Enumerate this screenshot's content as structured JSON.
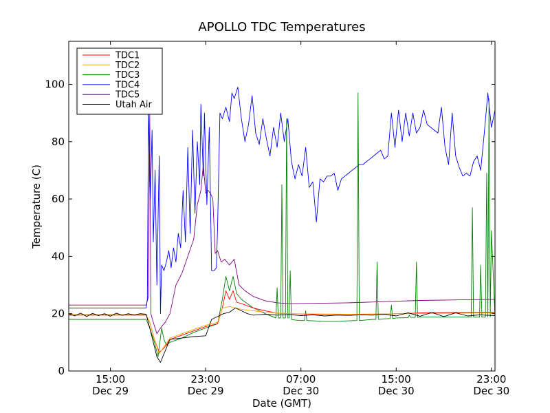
{
  "chart_data": {
    "type": "line",
    "title": "APOLLO TDC Temperatures",
    "xlabel": "Date (GMT)",
    "ylabel": "Temperature (C)",
    "x_unit": "hours since Dec 29 00:00 GMT",
    "xlim": [
      11.5,
      47.3
    ],
    "ylim": [
      0,
      115
    ],
    "grid": false,
    "legend_position": "top-left",
    "x_ticks": [
      {
        "value": 15,
        "time": "15:00",
        "date": "Dec 29"
      },
      {
        "value": 23,
        "time": "23:00",
        "date": "Dec 29"
      },
      {
        "value": 31,
        "time": "07:00",
        "date": "Dec 30"
      },
      {
        "value": 39,
        "time": "15:00",
        "date": "Dec 30"
      },
      {
        "value": 47,
        "time": "23:00",
        "date": "Dec 30"
      }
    ],
    "y_ticks": [
      0,
      20,
      40,
      60,
      80,
      100
    ],
    "series": [
      {
        "name": "TDC1",
        "color": "#ff0000",
        "x": [
          11.5,
          18.0,
          18.3,
          18.7,
          19.1,
          19.5,
          20.0,
          21.0,
          22.0,
          23.0,
          24.0,
          24.4,
          24.7,
          25.0,
          25.3,
          25.6,
          26.0,
          27.0,
          28.0,
          29.0,
          30.0,
          32.0,
          35.0,
          38.0,
          40.0,
          42.0,
          44.0,
          46.0,
          47.3
        ],
        "y": [
          19.5,
          19.5,
          17.0,
          11.0,
          6.5,
          8.0,
          11.0,
          12.5,
          14.0,
          15.5,
          16.5,
          22.0,
          28.0,
          25.0,
          28.0,
          24.0,
          23.5,
          22.0,
          21.0,
          20.2,
          20.0,
          19.8,
          19.7,
          19.9,
          20.1,
          20.4,
          20.4,
          20.5,
          20.5
        ]
      },
      {
        "name": "TDC2",
        "color": "#ffa500",
        "x": [
          11.5,
          18.0,
          18.3,
          18.7,
          19.1,
          19.5,
          20.0,
          21.0,
          22.0,
          23.0,
          24.0,
          24.4,
          25.0,
          26.0,
          28.0,
          30.0,
          35.0,
          40.0,
          47.3
        ],
        "y": [
          19.7,
          19.7,
          17.0,
          11.0,
          6.0,
          8.5,
          11.5,
          13.0,
          14.5,
          16.0,
          17.0,
          22.0,
          22.5,
          21.5,
          20.5,
          20.0,
          19.8,
          20.0,
          20.3
        ]
      },
      {
        "name": "TDC3",
        "color": "#008000",
        "x": [
          11.5,
          18.0,
          18.3,
          18.7,
          19.0,
          19.3,
          19.5,
          19.7,
          20.0,
          21.0,
          22.0,
          23.0,
          24.0,
          24.4,
          24.7,
          25.0,
          25.3,
          25.6,
          26.0,
          27.0,
          28.0,
          28.9,
          29.0,
          29.1,
          29.3,
          29.4,
          29.5,
          29.7,
          29.8,
          29.9,
          30.0,
          30.1,
          30.2,
          30.5,
          31.0,
          31.3,
          31.4,
          31.5,
          32.0,
          33.0,
          34.0,
          35.0,
          35.7,
          35.8,
          35.9,
          36.2,
          37.0,
          37.3,
          37.4,
          37.5,
          38.0,
          38.5,
          38.6,
          38.7,
          39.0,
          40.0,
          40.1,
          40.2,
          40.6,
          40.7,
          40.8,
          41.0,
          42.0,
          43.0,
          44.0,
          45.0,
          45.3,
          45.4,
          45.5,
          46.0,
          46.1,
          46.2,
          46.5,
          46.6,
          46.7,
          46.8,
          46.9,
          47.0,
          47.3
        ],
        "y": [
          18.0,
          18.0,
          15.0,
          10.0,
          5.0,
          15.0,
          11.0,
          9.0,
          10.0,
          11.5,
          13.5,
          15.0,
          16.5,
          25.0,
          33.0,
          28.0,
          33.0,
          27.0,
          25.0,
          22.0,
          20.0,
          18.5,
          29.0,
          18.5,
          18.5,
          65.0,
          18.5,
          18.5,
          88.0,
          18.5,
          18.5,
          35.0,
          18.0,
          17.8,
          17.6,
          17.6,
          21.0,
          17.6,
          17.5,
          17.3,
          17.3,
          17.5,
          17.6,
          97.0,
          17.6,
          17.7,
          18.0,
          18.0,
          38.0,
          18.0,
          18.2,
          18.3,
          23.0,
          18.3,
          18.5,
          18.6,
          19.5,
          18.7,
          18.7,
          38.0,
          18.7,
          18.8,
          18.8,
          18.8,
          18.8,
          18.8,
          18.8,
          57.0,
          18.8,
          18.8,
          37.0,
          18.8,
          18.8,
          69.0,
          18.8,
          95.0,
          18.8,
          49.0,
          18.8
        ]
      },
      {
        "name": "TDC4",
        "color": "#0000ff",
        "x": [
          11.5,
          18.0,
          18.1,
          18.2,
          18.35,
          18.5,
          18.6,
          18.75,
          18.9,
          19.1,
          19.2,
          19.3,
          19.5,
          19.7,
          19.9,
          20.1,
          20.3,
          20.5,
          20.7,
          20.9,
          21.1,
          21.3,
          21.5,
          21.7,
          21.9,
          22.1,
          22.3,
          22.5,
          22.6,
          22.8,
          22.9,
          23.1,
          23.3,
          23.5,
          23.7,
          23.9,
          24.0,
          24.2,
          24.4,
          24.7,
          25.0,
          25.2,
          25.4,
          25.7,
          26.0,
          26.3,
          26.6,
          26.9,
          27.2,
          27.5,
          27.8,
          28.1,
          28.4,
          28.7,
          29.0,
          29.3,
          29.6,
          29.9,
          30.2,
          30.5,
          30.8,
          31.1,
          31.4,
          31.7,
          32.0,
          32.3,
          32.6,
          32.9,
          33.2,
          33.5,
          33.8,
          34.1,
          34.4,
          34.7,
          35.0,
          35.3,
          35.6,
          35.9,
          36.2,
          36.5,
          36.8,
          37.1,
          37.4,
          37.7,
          38.0,
          38.3,
          38.6,
          38.9,
          39.2,
          39.5,
          39.8,
          40.1,
          40.4,
          40.7,
          41.0,
          41.3,
          41.6,
          41.9,
          42.2,
          42.5,
          42.8,
          43.1,
          43.4,
          43.7,
          44.0,
          44.3,
          44.6,
          44.9,
          45.2,
          45.5,
          45.8,
          46.1,
          46.4,
          46.7,
          47.0,
          47.3
        ],
        "y": [
          22.0,
          22.0,
          25.0,
          92.0,
          60.0,
          84.0,
          45.0,
          70.0,
          30.0,
          75.0,
          20.0,
          37.0,
          35.0,
          38.0,
          42.0,
          36.0,
          43.0,
          38.0,
          48.0,
          43.0,
          63.0,
          45.0,
          78.0,
          48.0,
          84.0,
          55.0,
          80.0,
          65.0,
          93.0,
          68.0,
          90.0,
          58.0,
          85.0,
          35.0,
          35.0,
          36.0,
          50.0,
          90.0,
          88.0,
          92.0,
          87.0,
          97.0,
          95.0,
          99.0,
          88.0,
          80.0,
          86.0,
          96.0,
          83.0,
          79.0,
          88.0,
          81.0,
          75.0,
          85.0,
          78.0,
          90.0,
          80.0,
          88.0,
          73.0,
          67.0,
          72.0,
          68.0,
          78.0,
          64.0,
          66.0,
          52.0,
          67.0,
          66.0,
          68.0,
          68.0,
          69.0,
          63.0,
          67.0,
          68.0,
          69.0,
          70.0,
          71.0,
          72.0,
          72.0,
          73.0,
          74.0,
          75.0,
          76.0,
          77.0,
          74.0,
          75.0,
          90.0,
          78.0,
          91.0,
          80.0,
          90.0,
          82.0,
          90.0,
          83.0,
          85.0,
          91.0,
          86.0,
          85.0,
          84.0,
          83.0,
          92.0,
          78.0,
          72.0,
          90.0,
          75.0,
          71.0,
          68.0,
          69.0,
          68.0,
          73.0,
          75.0,
          70.0,
          83.0,
          97.0,
          85.0,
          91.0
        ]
      },
      {
        "name": "TDC5",
        "color": "#800080",
        "x": [
          11.5,
          18.0,
          18.2,
          18.3,
          18.4,
          18.6,
          18.9,
          19.2,
          19.6,
          20.0,
          20.5,
          21.0,
          21.5,
          22.0,
          22.3,
          22.6,
          22.8,
          23.0,
          23.2,
          23.4,
          23.6,
          23.8,
          24.0,
          24.3,
          24.6,
          25.0,
          25.4,
          25.8,
          26.3,
          27.0,
          28.0,
          29.0,
          30.0,
          32.0,
          35.0,
          38.0,
          41.0,
          44.0,
          47.3
        ],
        "y": [
          23.0,
          23.0,
          26.0,
          90.0,
          20.0,
          17.0,
          13.0,
          15.0,
          17.0,
          20.0,
          30.0,
          34.0,
          40.0,
          46.0,
          58.0,
          63.0,
          72.0,
          62.0,
          63.0,
          62.0,
          60.0,
          41.0,
          42.0,
          38.0,
          39.0,
          37.0,
          39.0,
          30.0,
          28.0,
          26.0,
          24.5,
          23.8,
          23.5,
          23.6,
          23.8,
          24.2,
          24.6,
          24.8,
          25.0
        ]
      },
      {
        "name": "Utah Air",
        "color": "#000000",
        "x": [
          11.5,
          12.0,
          12.5,
          13.0,
          13.5,
          14.0,
          14.5,
          15.0,
          15.5,
          16.0,
          16.5,
          17.0,
          17.5,
          18.0,
          18.3,
          18.6,
          18.9,
          19.2,
          19.5,
          20.0,
          21.0,
          22.0,
          23.0,
          23.5,
          24.0,
          24.5,
          25.0,
          25.5,
          26.0,
          26.5,
          27.0,
          28.0,
          29.0,
          30.0,
          31.0,
          32.0,
          33.0,
          34.0,
          35.0,
          36.0,
          37.0,
          38.0,
          39.0,
          40.0,
          41.0,
          42.0,
          43.0,
          44.0,
          45.0,
          46.0,
          47.3
        ],
        "y": [
          20.0,
          19.2,
          20.2,
          19.0,
          20.1,
          19.3,
          20.0,
          19.1,
          20.2,
          19.4,
          20.0,
          19.5,
          20.0,
          19.8,
          15.0,
          10.0,
          5.0,
          3.0,
          6.0,
          11.0,
          11.5,
          12.0,
          12.3,
          18.0,
          19.0,
          20.0,
          20.5,
          22.0,
          21.0,
          20.0,
          19.5,
          19.8,
          19.5,
          19.7,
          19.3,
          19.6,
          19.2,
          19.5,
          19.4,
          19.6,
          19.5,
          19.8,
          19.2,
          20.3,
          19.1,
          20.4,
          19.0,
          20.3,
          19.2,
          19.6,
          19.3
        ]
      }
    ]
  }
}
